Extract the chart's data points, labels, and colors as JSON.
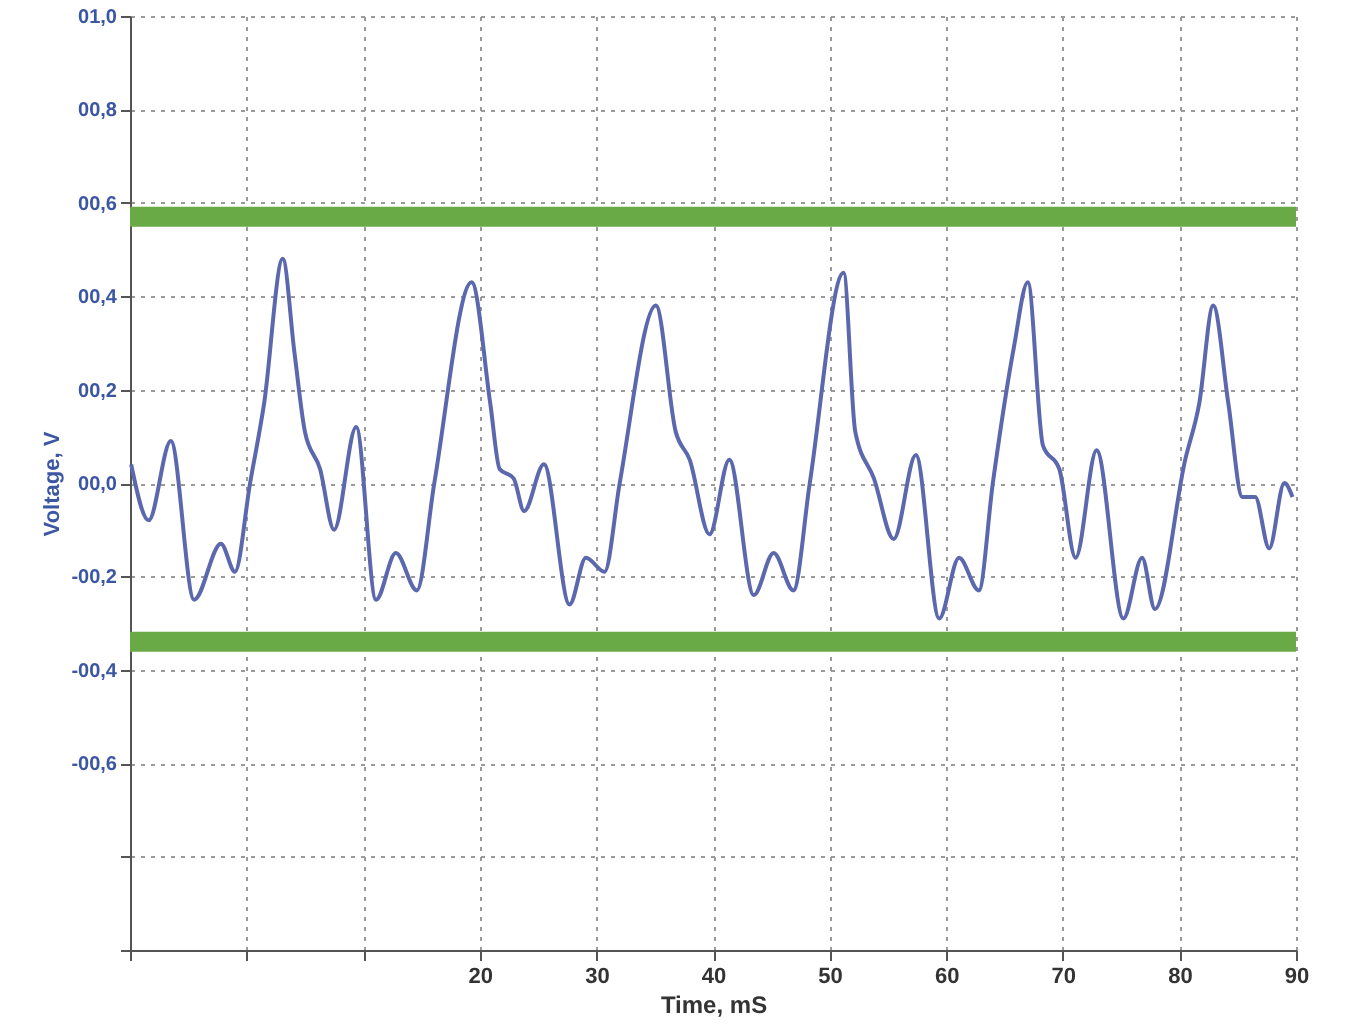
{
  "chart_data": {
    "type": "line",
    "xlabel": "Time, mS",
    "ylabel": "Voltage, V",
    "x": [
      -9.9,
      -8.4,
      -6.5,
      -4.5,
      -2.2,
      -1.0,
      0.3,
      1.5,
      3.1,
      4.1,
      5.0,
      6.3,
      7.5,
      9.4,
      11.1,
      12.8,
      14.6,
      16.1,
      19.3,
      20.9,
      21.7,
      22.9,
      23.8,
      25.5,
      27.7,
      29.1,
      30.7,
      32.0,
      35.1,
      36.8,
      38.0,
      39.7,
      41.4,
      43.5,
      45.2,
      46.9,
      48.3,
      51.2,
      52.2,
      53.8,
      55.5,
      57.4,
      59.4,
      61.1,
      62.8,
      64.0,
      65.8,
      67.0,
      68.3,
      69.7,
      71.1,
      72.9,
      75.2,
      76.8,
      77.9,
      80.5,
      81.7,
      82.9,
      84.2,
      85.4,
      86.5,
      87.7,
      89.0,
      89.7
    ],
    "series": [
      {
        "color": "#5b68ad",
        "values": [
          0.04,
          -0.08,
          0.09,
          -0.25,
          -0.13,
          -0.19,
          0.0,
          0.17,
          0.48,
          0.28,
          0.11,
          0.03,
          -0.1,
          0.12,
          -0.25,
          -0.15,
          -0.23,
          0.0,
          0.43,
          0.17,
          0.03,
          0.01,
          -0.06,
          0.04,
          -0.26,
          -0.16,
          -0.19,
          0.0,
          0.38,
          0.11,
          0.05,
          -0.11,
          0.05,
          -0.24,
          -0.15,
          -0.23,
          0.0,
          0.45,
          0.11,
          0.01,
          -0.12,
          0.06,
          -0.29,
          -0.16,
          -0.23,
          0.0,
          0.29,
          0.43,
          0.08,
          0.03,
          -0.16,
          0.07,
          -0.29,
          -0.16,
          -0.27,
          0.05,
          0.17,
          0.38,
          0.17,
          -0.03,
          -0.03,
          -0.14,
          0.0,
          -0.03
        ]
      }
    ],
    "xlim": [
      -10,
      90
    ],
    "xticks": [
      {
        "value": -10,
        "label": null
      },
      {
        "value": 0,
        "label": null
      },
      {
        "value": 10,
        "label": null
      },
      20,
      30,
      40,
      50,
      60,
      70,
      80,
      90
    ],
    "ylim": [
      -1,
      1
    ],
    "yticks": [
      {
        "value": -1,
        "label": null
      },
      {
        "value": -0.8,
        "label": null
      },
      {
        "value": -0.6,
        "label": "-00,6"
      },
      {
        "value": -0.4,
        "label": "-00,4"
      },
      {
        "value": -0.2,
        "label": "-00,2"
      },
      {
        "value": 0,
        "label": "00,0"
      },
      {
        "value": 0.2,
        "label": "00,2"
      },
      {
        "value": 0.4,
        "label": "00,4"
      },
      {
        "value": 0.6,
        "label": "00,6"
      },
      {
        "value": 0.8,
        "label": "00,8"
      },
      {
        "value": 1,
        "label": "01,0"
      }
    ],
    "ref_lines": [
      {
        "axis": "y",
        "value": 0.57,
        "color": "#6aaa46"
      },
      {
        "axis": "y",
        "value": -0.34,
        "color": "#6aaa46"
      }
    ],
    "grid": true
  }
}
